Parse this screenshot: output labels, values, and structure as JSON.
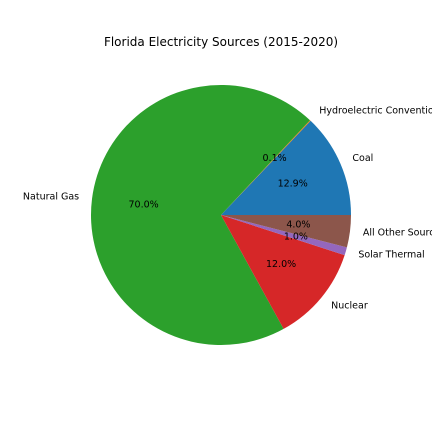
{
  "chart_data": {
    "type": "pie",
    "title": "Florida Electricity Sources (2015-2020)",
    "start_angle_deg": 0,
    "direction": "counterclockwise",
    "slices": [
      {
        "label": "Coal",
        "value": 12.9,
        "pct_label": "12.9%",
        "color": "#1f77b4"
      },
      {
        "label": "Hydroelectric Conventional",
        "value": 0.1,
        "pct_label": "0.1%",
        "color": "#ff7f0e"
      },
      {
        "label": "Natural Gas",
        "value": 70.0,
        "pct_label": "70.0%",
        "color": "#2ca02c"
      },
      {
        "label": "Nuclear",
        "value": 12.0,
        "pct_label": "12.0%",
        "color": "#d62728"
      },
      {
        "label": "Solar Thermal",
        "value": 1.0,
        "pct_label": "1.0%",
        "color": "#9467bd"
      },
      {
        "label": "All Other Sources",
        "value": 4.0,
        "pct_label": "4.0%",
        "color": "#8c564b"
      }
    ]
  }
}
